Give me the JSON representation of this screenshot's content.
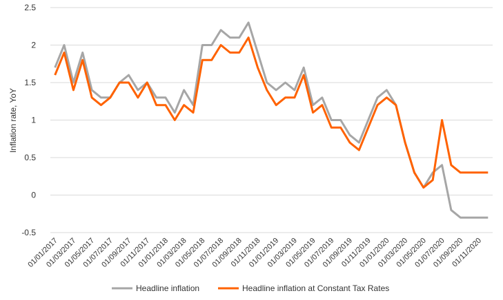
{
  "chart_data": {
    "type": "line",
    "ylabel": "Inflation rate, YoY",
    "ylim": [
      -0.5,
      2.5
    ],
    "yticks": [
      "-0.5",
      "0",
      "0.5",
      "1",
      "1.5",
      "2",
      "2.5"
    ],
    "grid": "horizontal",
    "legend_position": "bottom",
    "x": [
      "01/01/2017",
      "01/02/2017",
      "01/03/2017",
      "01/04/2017",
      "01/05/2017",
      "01/06/2017",
      "01/07/2017",
      "01/08/2017",
      "01/09/2017",
      "01/10/2017",
      "01/11/2017",
      "01/12/2017",
      "01/01/2018",
      "01/02/2018",
      "01/03/2018",
      "01/04/2018",
      "01/05/2018",
      "01/06/2018",
      "01/07/2018",
      "01/08/2018",
      "01/09/2018",
      "01/10/2018",
      "01/11/2018",
      "01/12/2018",
      "01/01/2019",
      "01/02/2019",
      "01/03/2019",
      "01/04/2019",
      "01/05/2019",
      "01/06/2019",
      "01/07/2019",
      "01/08/2019",
      "01/09/2019",
      "01/10/2019",
      "01/11/2019",
      "01/12/2019",
      "01/01/2020",
      "01/02/2020",
      "01/03/2020",
      "01/04/2020",
      "01/05/2020",
      "01/06/2020",
      "01/07/2020",
      "01/08/2020",
      "01/09/2020",
      "01/10/2020",
      "01/11/2020",
      "01/12/2020"
    ],
    "xtick_labels": [
      "01/01/2017",
      "01/03/2017",
      "01/05/2017",
      "01/07/2017",
      "01/09/2017",
      "01/11/2017",
      "01/01/2018",
      "01/03/2018",
      "01/05/2018",
      "01/07/2018",
      "01/09/2018",
      "01/11/2018",
      "01/01/2019",
      "01/03/2019",
      "01/05/2019",
      "01/07/2019",
      "01/09/2019",
      "01/11/2019",
      "01/01/2020",
      "01/03/2020",
      "01/05/2020",
      "01/07/2020",
      "01/09/2020",
      "01/11/2020"
    ],
    "series": [
      {
        "name": "Headline inflation",
        "color": "#a6a6a6",
        "values": [
          1.7,
          2.0,
          1.5,
          1.9,
          1.4,
          1.3,
          1.3,
          1.5,
          1.6,
          1.4,
          1.5,
          1.3,
          1.3,
          1.1,
          1.4,
          1.2,
          2.0,
          2.0,
          2.2,
          2.1,
          2.1,
          2.3,
          1.9,
          1.5,
          1.4,
          1.5,
          1.4,
          1.7,
          1.2,
          1.3,
          1.0,
          1.0,
          0.8,
          0.7,
          1.0,
          1.3,
          1.4,
          1.2,
          0.7,
          0.3,
          0.1,
          0.3,
          0.4,
          -0.2,
          -0.3,
          -0.3,
          -0.3,
          -0.3
        ]
      },
      {
        "name": "Headline inflation at Constant Tax Rates",
        "color": "#ff6200",
        "values": [
          1.6,
          1.9,
          1.4,
          1.8,
          1.3,
          1.2,
          1.3,
          1.5,
          1.5,
          1.3,
          1.5,
          1.2,
          1.2,
          1.0,
          1.2,
          1.1,
          1.8,
          1.8,
          2.0,
          1.9,
          1.9,
          2.1,
          1.7,
          1.4,
          1.2,
          1.3,
          1.3,
          1.6,
          1.1,
          1.2,
          0.9,
          0.9,
          0.7,
          0.6,
          0.9,
          1.2,
          1.3,
          1.2,
          0.7,
          0.3,
          0.1,
          0.2,
          1.0,
          0.4,
          0.3,
          0.3,
          0.3,
          0.3
        ]
      }
    ]
  }
}
